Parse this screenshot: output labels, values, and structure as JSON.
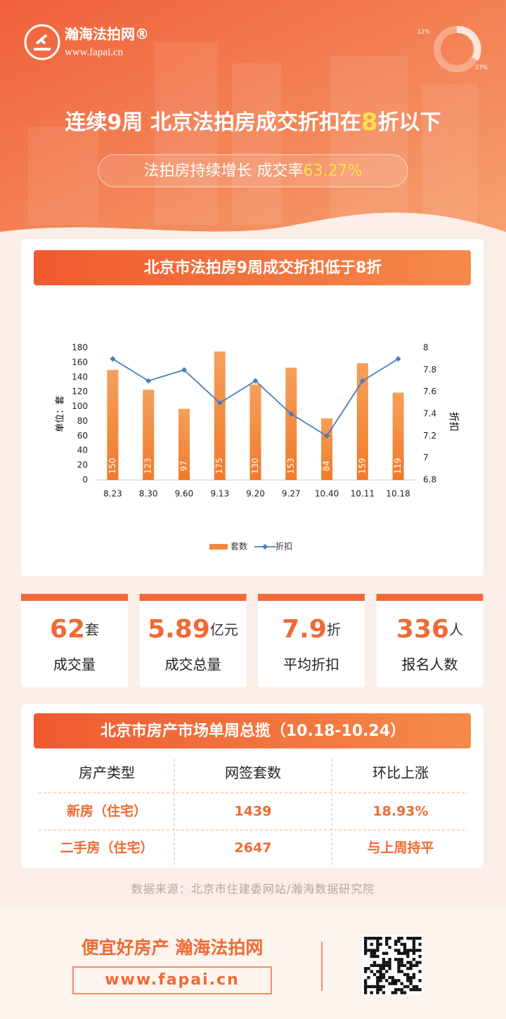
{
  "header": {
    "logo_name": "瀚海法拍网®",
    "logo_url": "www.fapai.cn",
    "decor_labels": [
      "12%",
      "27%"
    ],
    "title_parts": [
      "连续9周 北京法拍房成交折扣在",
      "8",
      "折以下"
    ],
    "subtitle_parts": [
      "法拍房持续增长 成交率",
      "63.27%"
    ]
  },
  "chart_card_title": "北京市法拍房9周成交折扣低于8折",
  "chart_data": {
    "type": "bar",
    "categories": [
      "8.23",
      "8.30",
      "9.60",
      "9.13",
      "9.20",
      "9.27",
      "10.40",
      "10.11",
      "10.18"
    ],
    "series": [
      {
        "name": "套数",
        "type": "bar",
        "color": "#f08a3c",
        "values": [
          150,
          123,
          97,
          175,
          130,
          153,
          84,
          159,
          119
        ]
      },
      {
        "name": "折扣",
        "type": "line",
        "axis": "y2",
        "color": "#4a7ebb",
        "values": [
          7.9,
          7.7,
          7.8,
          7.5,
          7.7,
          7.4,
          7.2,
          7.7,
          7.9
        ]
      }
    ],
    "ylim": [
      0,
      180
    ],
    "yticks": [
      0,
      20,
      40,
      60,
      80,
      100,
      120,
      140,
      160,
      180
    ],
    "y2lim": [
      6.8,
      8
    ],
    "y2ticks": [
      6.8,
      7,
      7.2,
      7.4,
      7.6,
      7.8,
      8
    ],
    "y_label": "单位：套",
    "y2_label": "折扣",
    "legend": "bottom"
  },
  "stats": [
    {
      "value": 62,
      "unit": "套",
      "label": "成交量"
    },
    {
      "value": 5.89,
      "unit": "亿元",
      "label": "成交总量"
    },
    {
      "value": 7.9,
      "unit": "折",
      "label": "平均折扣"
    },
    {
      "value": 336,
      "unit": "人",
      "label": "报名人数"
    }
  ],
  "table": {
    "title": "北京市房产市场单周总揽（10.18-10.24）",
    "header": [
      "房产类型",
      "网签套数",
      "环比上涨"
    ],
    "rows": [
      [
        "新房（住宅）",
        "1439",
        "18.93%"
      ],
      [
        "二手房（住宅）",
        "2647",
        "与上周持平"
      ]
    ]
  },
  "source": "数据来源：北京市住建委网站/瀚海数据研究院",
  "footer": {
    "slogan": "便宜好房产 瀚海法拍网",
    "url": "www.fapai.cn"
  }
}
